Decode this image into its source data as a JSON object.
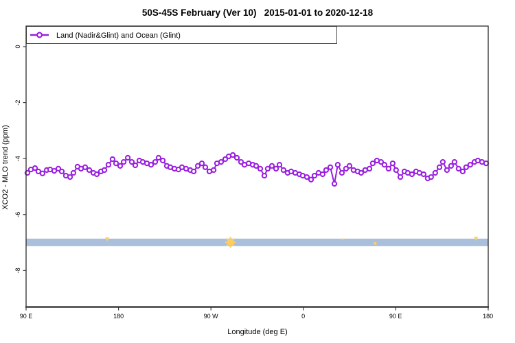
{
  "chart_data": {
    "type": "line",
    "title": "50S-45S February (Ver 10)   2015-01-01 to 2020-12-18",
    "xlabel": "Longitude (deg E)",
    "ylabel": "XCO2 - MLO trend (ppm)",
    "xlim": [
      90,
      540
    ],
    "ylim": [
      -9.29,
      0.735
    ],
    "grid": false,
    "x_ticks": {
      "values": [
        90,
        180,
        270,
        360,
        450,
        540
      ],
      "labels": [
        "90 E",
        "180",
        "90 W",
        "0",
        "90 E",
        "180"
      ]
    },
    "y_ticks": {
      "values": [
        0,
        -2,
        -4,
        -6,
        -8
      ],
      "labels": [
        "0",
        "-2",
        "-4",
        "-6",
        "-8"
      ]
    },
    "legend": {
      "position": "topleft",
      "entries": [
        {
          "label": "Land (Nadir&Glint) and Ocean (Glint)",
          "color": "#9A1FE0",
          "marker": "circle-open"
        }
      ]
    },
    "series": [
      {
        "name": "Land (Nadir&Glint) and Ocean (Glint)",
        "color": "#9A1FE0",
        "marker": "circle-open",
        "marker_fill": "#ffffff",
        "x": [
          91.3,
          94.7,
          98.7,
          102,
          106,
          110.1,
          113.4,
          117.4,
          121.4,
          124.8,
          128.8,
          132.8,
          136.1,
          140.1,
          143.5,
          147.5,
          151.5,
          155.5,
          158.9,
          162.9,
          166.2,
          170.2,
          174.2,
          177.6,
          181.6,
          185,
          189,
          193,
          196.3,
          200.3,
          203.7,
          207.7,
          211.7,
          215.7,
          219,
          223.1,
          227.1,
          230.4,
          234.4,
          238.4,
          241.8,
          245.8,
          249.8,
          253.2,
          257.2,
          261.2,
          264.5,
          268.5,
          272.6,
          275.9,
          279.9,
          283.9,
          287.3,
          291.3,
          295.3,
          299.3,
          302.6,
          306.7,
          310.7,
          314,
          318,
          322,
          325.3,
          329.4,
          333.4,
          336.7,
          340.7,
          344.7,
          348.1,
          352.1,
          356.1,
          359.4,
          363.4,
          367.5,
          370.8,
          374.8,
          378.8,
          382.1,
          386.2,
          390.2,
          393.5,
          397.5,
          401.5,
          404.9,
          408.9,
          412.9,
          416.2,
          420.2,
          424.3,
          427.6,
          431.6,
          435.6,
          439,
          443,
          447,
          450.3,
          454.4,
          458.4,
          461.7,
          465.7,
          469.7,
          473.1,
          477.1,
          481.1,
          484.4,
          488.4,
          492.5,
          495.8,
          499.8,
          503.8,
          507.2,
          511.2,
          515.2,
          518.5,
          522.5,
          526.6,
          529.9,
          533.9,
          537.9
        ],
        "y": [
          -4.51,
          -4.39,
          -4.34,
          -4.46,
          -4.53,
          -4.41,
          -4.39,
          -4.44,
          -4.36,
          -4.46,
          -4.61,
          -4.66,
          -4.51,
          -4.29,
          -4.36,
          -4.31,
          -4.41,
          -4.51,
          -4.56,
          -4.46,
          -4.41,
          -4.22,
          -4.02,
          -4.17,
          -4.26,
          -4.12,
          -3.97,
          -4.12,
          -4.24,
          -4.07,
          -4.12,
          -4.17,
          -4.22,
          -4.12,
          -3.97,
          -4.07,
          -4.26,
          -4.31,
          -4.36,
          -4.39,
          -4.31,
          -4.36,
          -4.41,
          -4.46,
          -4.26,
          -4.17,
          -4.31,
          -4.46,
          -4.41,
          -4.17,
          -4.12,
          -4.02,
          -3.92,
          -3.87,
          -3.97,
          -4.12,
          -4.22,
          -4.17,
          -4.22,
          -4.26,
          -4.36,
          -4.61,
          -4.36,
          -4.26,
          -4.36,
          -4.22,
          -4.41,
          -4.51,
          -4.46,
          -4.51,
          -4.56,
          -4.61,
          -4.66,
          -4.75,
          -4.61,
          -4.51,
          -4.56,
          -4.41,
          -4.31,
          -4.9,
          -4.22,
          -4.51,
          -4.36,
          -4.26,
          -4.41,
          -4.46,
          -4.51,
          -4.41,
          -4.36,
          -4.17,
          -4.07,
          -4.12,
          -4.22,
          -4.36,
          -4.17,
          -4.41,
          -4.66,
          -4.46,
          -4.51,
          -4.56,
          -4.46,
          -4.51,
          -4.56,
          -4.71,
          -4.66,
          -4.51,
          -4.31,
          -4.12,
          -4.41,
          -4.26,
          -4.12,
          -4.36,
          -4.46,
          -4.31,
          -4.22,
          -4.12,
          -4.07,
          -4.12,
          -4.17
        ]
      }
    ],
    "band": {
      "x_from": 90,
      "x_to": 540,
      "y_top": -6.86,
      "y_bottom": -7.13,
      "color": "#A9BFDB"
    },
    "flags": {
      "color": "#FFCE62",
      "points": [
        {
          "x": 169,
          "y": -6.88,
          "shape": "tri-down",
          "size": 3.2
        },
        {
          "x": 289,
          "y": -6.99,
          "shape": "star",
          "size": 6.5
        },
        {
          "x": 398,
          "y": -6.88,
          "shape": "dot",
          "size": 1.3
        },
        {
          "x": 430,
          "y": -7.03,
          "shape": "square",
          "size": 1.8
        },
        {
          "x": 528,
          "y": -6.86,
          "shape": "tri-down",
          "size": 3.2
        }
      ]
    }
  }
}
